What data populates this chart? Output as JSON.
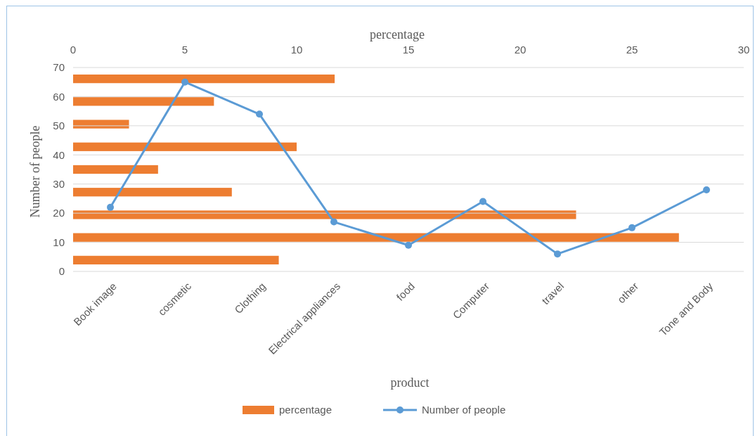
{
  "chart_data": [
    {
      "type": "line",
      "xlabel": "product",
      "ylabel": "Number of people",
      "categories": [
        "Book image",
        "cosmetic",
        "Clothing",
        "Electrical appliances",
        "food",
        "Computer",
        "travel",
        "other",
        "Tone and Body"
      ],
      "ylim": [
        0,
        70
      ],
      "yticks": [
        0,
        10,
        20,
        30,
        40,
        50,
        60,
        70
      ],
      "grid": "y",
      "legend": "bottom",
      "marker": "circle",
      "series": [
        {
          "name": "Number of people",
          "color": "#5b9bd5",
          "values": [
            22,
            65,
            54,
            17,
            9,
            24,
            6,
            15,
            28
          ]
        }
      ]
    },
    {
      "type": "bar",
      "orientation": "horizontal",
      "xlabel": "percentage",
      "categories": [
        null,
        null,
        null,
        null,
        null,
        null,
        null,
        null,
        null
      ],
      "xlim": [
        0,
        30
      ],
      "xticks": [
        0,
        5,
        10,
        15,
        20,
        25,
        30
      ],
      "legend": "bottom",
      "series": [
        {
          "name": "percentage",
          "color": "#ed7d31",
          "values": [
            11.7,
            6.3,
            2.5,
            10,
            3.8,
            7.1,
            22.5,
            27.1,
            9.2
          ]
        }
      ]
    }
  ]
}
